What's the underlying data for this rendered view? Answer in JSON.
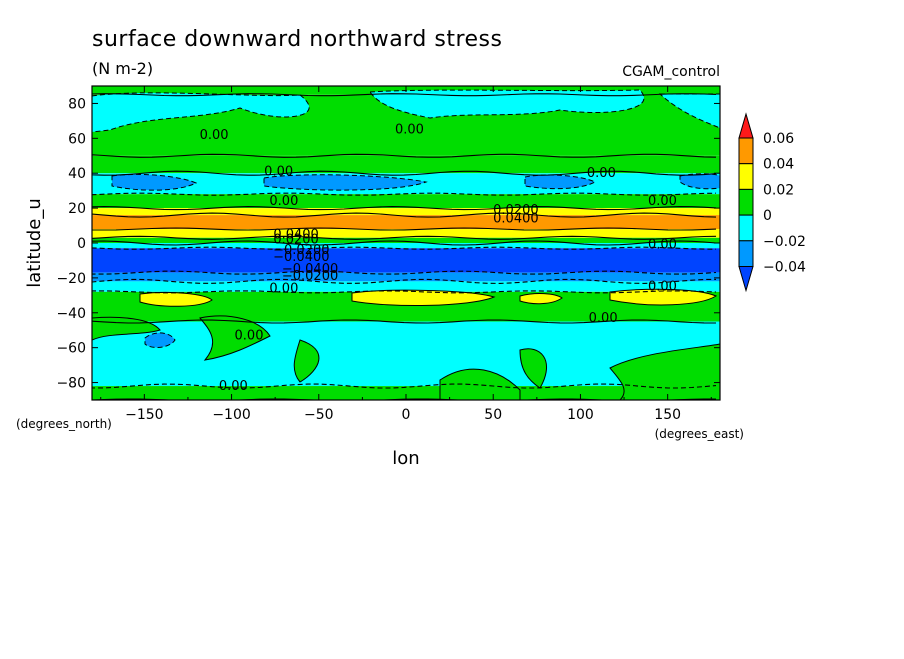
{
  "chart_data": {
    "type": "heatmap",
    "title": "surface downward northward stress",
    "units": "(N m-2)",
    "experiment": "CGAM_control",
    "xlabel": "lon",
    "ylabel": "latitude_u",
    "x_units": "(degrees_east)",
    "y_units": "(degrees_north)",
    "xlim": [
      -180,
      180
    ],
    "ylim": [
      -90,
      90
    ],
    "x_ticks": [
      "−150",
      "−100",
      "−50",
      "0",
      "50",
      "100",
      "150"
    ],
    "y_ticks": [
      "80",
      "60",
      "40",
      "20",
      "0",
      "−20",
      "−40",
      "−60",
      "−80"
    ],
    "colorbar": {
      "labels": [
        "0.06",
        "0.04",
        "0.02",
        "0",
        "−0.02",
        "−0.04"
      ],
      "colors": [
        "#ff1a1a",
        "#ff9900",
        "#ffff00",
        "#00dd00",
        "#00ffff",
        "#0099ff",
        "#0044ff"
      ]
    },
    "zonal_bands": [
      {
        "lat_range": [
          85,
          90
        ],
        "level": "0 to 0.02"
      },
      {
        "lat_range": [
          50,
          85
        ],
        "level": "0 to 0.02"
      },
      {
        "lat_range": [
          40,
          50
        ],
        "level": "0 to 0.02"
      },
      {
        "lat_range": [
          28,
          40
        ],
        "level": "-0.02 to 0"
      },
      {
        "lat_range": [
          20,
          28
        ],
        "level": "0 to 0.02"
      },
      {
        "lat_range": [
          16,
          20
        ],
        "level": "0.02 to 0.04"
      },
      {
        "lat_range": [
          8,
          16
        ],
        "level": "0.04 to 0.06"
      },
      {
        "lat_range": [
          3,
          8
        ],
        "level": "0.02 to 0.04"
      },
      {
        "lat_range": [
          0,
          3
        ],
        "level": "0 to 0.02"
      },
      {
        "lat_range": [
          -3,
          0
        ],
        "level": "-0.02 to 0"
      },
      {
        "lat_range": [
          -17,
          -3
        ],
        "level": "< -0.04"
      },
      {
        "lat_range": [
          -22,
          -17
        ],
        "level": "-0.04 to -0.02"
      },
      {
        "lat_range": [
          -28,
          -22
        ],
        "level": "-0.02 to 0"
      },
      {
        "lat_range": [
          -45,
          -28
        ],
        "level": "0 to 0.02"
      },
      {
        "lat_range": [
          -82,
          -45
        ],
        "level": "-0.02 to 0"
      },
      {
        "lat_range": [
          -90,
          -82
        ],
        "level": "0 to 0.02"
      }
    ],
    "contour_labels": [
      {
        "text": "0.00",
        "lon": -110,
        "lat": 62
      },
      {
        "text": "0.00",
        "lon": 2,
        "lat": 65
      },
      {
        "text": "0.00",
        "lon": -73,
        "lat": 41
      },
      {
        "text": "0.00",
        "lon": 112,
        "lat": 40
      },
      {
        "text": "0.00",
        "lon": -70,
        "lat": 24
      },
      {
        "text": "0.00",
        "lon": 147,
        "lat": 24
      },
      {
        "text": "0.0200",
        "lon": 63,
        "lat": 19
      },
      {
        "text": "0.0400",
        "lon": 63,
        "lat": 14
      },
      {
        "text": "0.0400",
        "lon": -63,
        "lat": 5
      },
      {
        "text": "0.0200",
        "lon": -63,
        "lat": 2
      },
      {
        "text": "0.00",
        "lon": 147,
        "lat": -1
      },
      {
        "text": "−0.0200",
        "lon": -60,
        "lat": -4
      },
      {
        "text": "−0.0400",
        "lon": -60,
        "lat": -8
      },
      {
        "text": "−0.0400",
        "lon": -55,
        "lat": -15
      },
      {
        "text": "−0.0200",
        "lon": -55,
        "lat": -19
      },
      {
        "text": "0.00",
        "lon": -70,
        "lat": -26
      },
      {
        "text": "0.00",
        "lon": 147,
        "lat": -25
      },
      {
        "text": "0.00",
        "lon": 113,
        "lat": -43
      },
      {
        "text": "0.00",
        "lon": -90,
        "lat": -53
      },
      {
        "text": "0.00",
        "lon": -99,
        "lat": -82
      }
    ]
  }
}
